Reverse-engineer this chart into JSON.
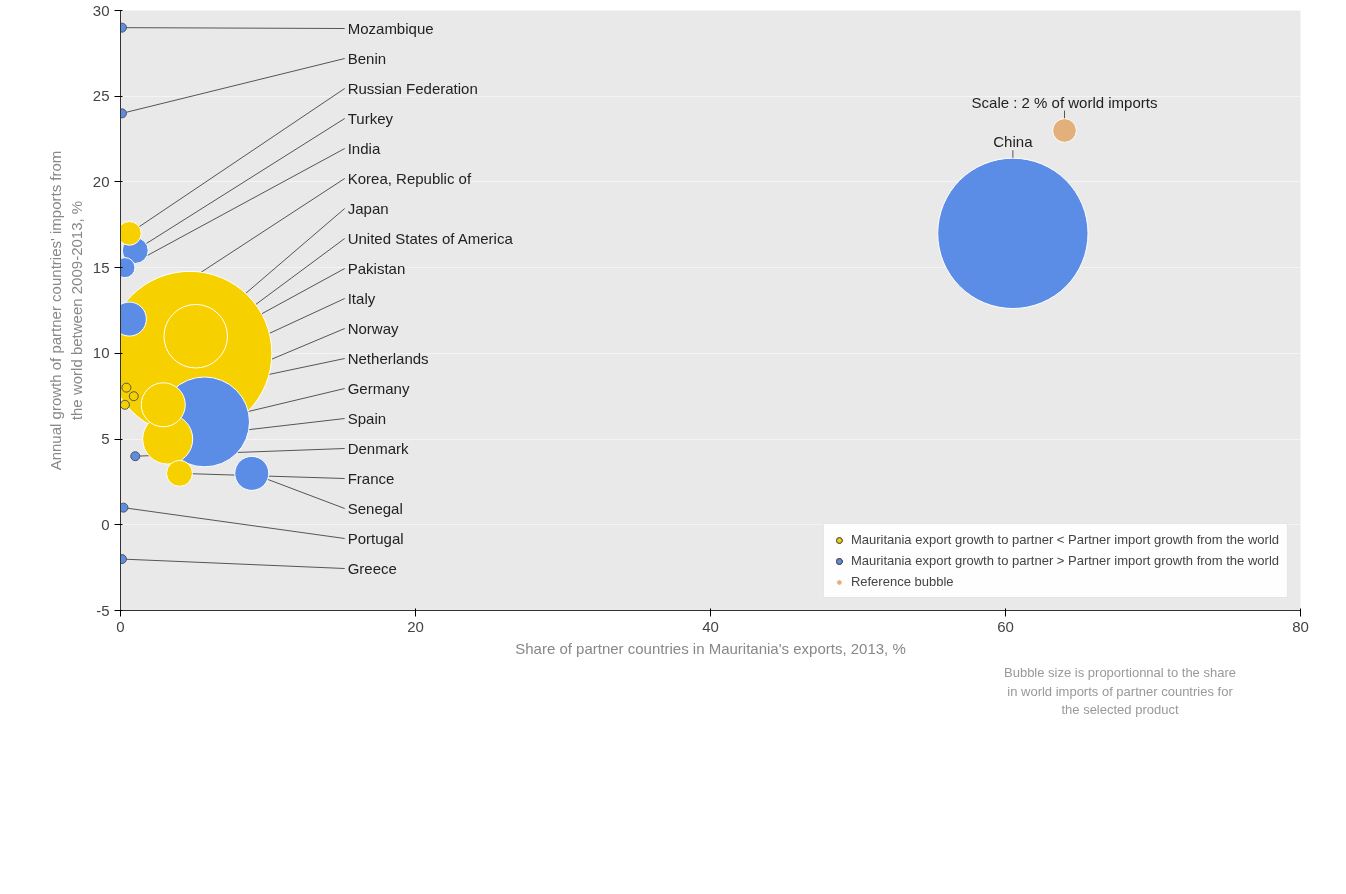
{
  "chart_data": {
    "type": "bubble",
    "xlabel": "Share of partner countries in Mauritania's exports, 2013, %",
    "ylabel": "Annual growth of partner countries' imports from the world between 2009-2013, %",
    "xlim": [
      0,
      80
    ],
    "ylim": [
      -5,
      30
    ],
    "xticks": [
      0,
      20,
      40,
      60,
      80
    ],
    "yticks": [
      -5,
      0,
      5,
      10,
      15,
      20,
      25,
      30
    ],
    "grid": "y",
    "legend": "bottom right",
    "series": [
      {
        "name": "Mauritania export growth to partner < Partner import growth from the world",
        "color": "#f7d000",
        "x": [
          4.7,
          5.1,
          2.9,
          3.2,
          4.0,
          0.6,
          0.4,
          0.3,
          0.9
        ],
        "values": [
          10,
          11,
          7,
          5,
          3,
          17,
          8,
          7,
          7.5
        ],
        "sizes": [
          1,
          0.15,
          0.072,
          0.093,
          0.025,
          0.021,
          0.003,
          0.003,
          0.003
        ]
      },
      {
        "name": "Mauritania export growth to partner > Partner import growth from the world",
        "color": "#5b8de6",
        "x": [
          60.5,
          5.7,
          0.6,
          8.9,
          1.0,
          0.3,
          0.1,
          0.1,
          1.0,
          0.2,
          0.1
        ],
        "values": [
          17,
          6,
          12,
          3,
          16,
          15,
          29,
          24,
          4,
          1,
          -2
        ],
        "sizes": [
          0.84,
          0.3,
          0.043,
          0.043,
          0.025,
          0.015,
          0.003,
          0.003,
          0.003,
          0.003,
          0.003
        ]
      },
      {
        "name": "Reference bubble",
        "color": "#e3b07c",
        "x": [
          64
        ],
        "values": [
          23
        ],
        "sizes": [
          0.021
        ]
      }
    ],
    "annotations": [
      {
        "text": "Mozambique",
        "x": 0.1,
        "y": 29
      },
      {
        "text": "Benin",
        "x": 0.1,
        "y": 24
      },
      {
        "text": "Russian Federation",
        "x": 0.6,
        "y": 17
      },
      {
        "text": "Turkey",
        "x": 1.0,
        "y": 16
      },
      {
        "text": "India",
        "x": 0.3,
        "y": 15
      },
      {
        "text": "Korea, Republic of",
        "x": 0.6,
        "y": 12
      },
      {
        "text": "Japan",
        "x": 5.1,
        "y": 11
      },
      {
        "text": "United States of America",
        "x": 4.7,
        "y": 10
      },
      {
        "text": "Pakistan",
        "x": 0.4,
        "y": 8
      },
      {
        "text": "Norway",
        "x": 2.9,
        "y": 7
      },
      {
        "text": "Netherlands",
        "x": 0.3,
        "y": 7
      },
      {
        "text": "Italy",
        "x": 0.9,
        "y": 7.5
      },
      {
        "text": "Germany",
        "x": 5.7,
        "y": 6
      },
      {
        "text": "Spain",
        "x": 3.2,
        "y": 5
      },
      {
        "text": "Denmark",
        "x": 1.0,
        "y": 4
      },
      {
        "text": "France",
        "x": 4.0,
        "y": 3
      },
      {
        "text": "Senegal",
        "x": 8.9,
        "y": 3
      },
      {
        "text": "Portugal",
        "x": 0.2,
        "y": 1
      },
      {
        "text": "Greece",
        "x": 0.1,
        "y": -2
      },
      {
        "text": "China",
        "x": 60.5,
        "y": 17
      },
      {
        "text": "Scale : 2 % of world imports",
        "x": 64,
        "y": 23
      },
      "Bubble size is proportionnal to the share in world imports of partner countries for the selected product"
    ]
  }
}
